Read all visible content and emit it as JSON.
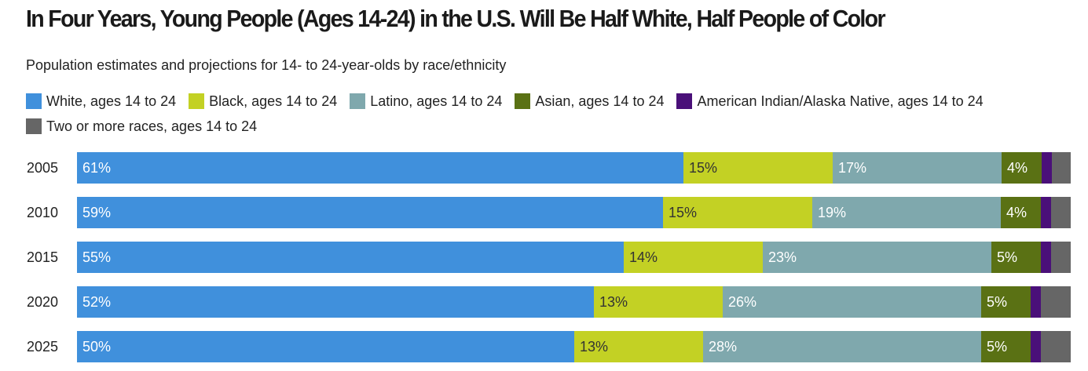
{
  "title": "In Four Years, Young People (Ages 14-24) in the U.S. Will Be Half White, Half People of Color",
  "subtitle": "Population estimates and projections for 14- to 24-year-olds by race/ethnicity",
  "colors": {
    "white": "#4090dc",
    "black": "#c3d124",
    "latino": "#7fa8ad",
    "asian": "#5a7114",
    "aian": "#4a1079",
    "two_or_more": "#666666"
  },
  "chart_data": {
    "type": "bar",
    "orientation": "horizontal",
    "stacked": true,
    "title": "In Four Years, Young People (Ages 14-24) in the U.S. Will Be Half White, Half People of Color",
    "subtitle": "Population estimates and projections for 14- to 24-year-olds by race/ethnicity",
    "categories": [
      "2005",
      "2010",
      "2015",
      "2020",
      "2025"
    ],
    "legend_position": "top",
    "xlim": [
      0,
      100
    ],
    "series": [
      {
        "name": "White, ages 14 to 24",
        "key": "white",
        "values": [
          61,
          59,
          55,
          52,
          50
        ],
        "labels": [
          "61%",
          "59%",
          "55%",
          "52%",
          "50%"
        ]
      },
      {
        "name": "Black, ages 14 to 24",
        "key": "black",
        "values": [
          15,
          15,
          14,
          13,
          13
        ],
        "labels": [
          "15%",
          "15%",
          "14%",
          "13%",
          "13%"
        ]
      },
      {
        "name": "Latino, ages 14 to 24",
        "key": "latino",
        "values": [
          17,
          19,
          23,
          26,
          28
        ],
        "labels": [
          "17%",
          "19%",
          "23%",
          "26%",
          "28%"
        ]
      },
      {
        "name": "Asian, ages 14 to 24",
        "key": "asian",
        "values": [
          4,
          4,
          5,
          5,
          5
        ],
        "labels": [
          "4%",
          "4%",
          "5%",
          "5%",
          "5%"
        ]
      },
      {
        "name": "American Indian/Alaska Native, ages 14 to 24",
        "key": "aian",
        "values": [
          1,
          1,
          1,
          1,
          1
        ],
        "labels": [
          "",
          "",
          "",
          "",
          ""
        ]
      },
      {
        "name": "Two or more races, ages 14 to 24",
        "key": "two_or_more",
        "values": [
          2,
          2,
          2,
          3,
          3
        ],
        "labels": [
          "",
          "",
          "",
          "",
          ""
        ]
      }
    ]
  }
}
